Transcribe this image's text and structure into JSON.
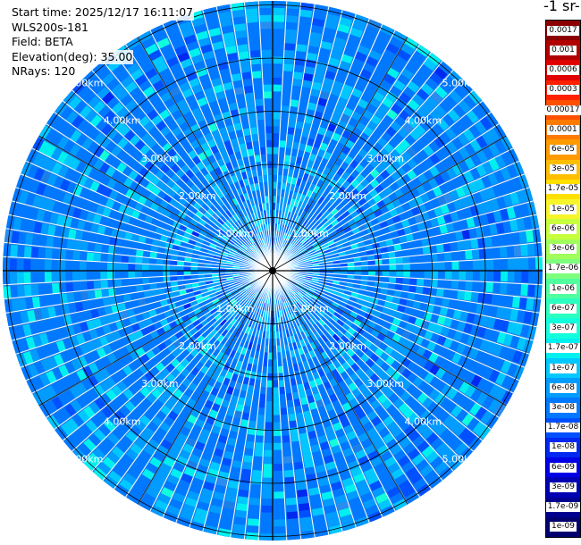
{
  "plot_info": {
    "start_time": "Start time: 2025/12/17 16:11:07",
    "instrument": "WLS200s-181",
    "field": "Field: BETA",
    "elevation": "Elevation(deg): 35.00",
    "nrays": "NRays: 120"
  },
  "colorbar": {
    "title": "-1 sr-",
    "labels": [
      "0.0017",
      "0.001",
      "0.0006",
      "0.0003",
      "0.00017",
      "0.0001",
      "6e-05",
      "3e-05",
      "1.7e-05",
      "1e-05",
      "6e-06",
      "3e-06",
      "1.7e-06",
      "1e-06",
      "6e-07",
      "3e-07",
      "1.7e-07",
      "1e-07",
      "6e-08",
      "3e-08",
      "1.7e-08",
      "1e-08",
      "6e-09",
      "3e-09",
      "1.7e-09",
      "1e-09"
    ],
    "colors": [
      "#8b0000",
      "#b00000",
      "#e00000",
      "#ff2000",
      "#ff5000",
      "#ff7a00",
      "#ff9a00",
      "#ffbe00",
      "#ffe000",
      "#f5f52a",
      "#c8ff3c",
      "#a0ff5a",
      "#7dff7d",
      "#50ff9e",
      "#2affc0",
      "#12ffdc",
      "#00f0f0",
      "#00c8ff",
      "#009cff",
      "#0078ff",
      "#0050ff",
      "#0028f0",
      "#0000e6",
      "#0000b4",
      "#000090",
      "#00006e"
    ]
  },
  "range_rings": {
    "labels": [
      "1.00km",
      "2.00km",
      "3.00km",
      "4.00km",
      "5.00km"
    ]
  }
}
